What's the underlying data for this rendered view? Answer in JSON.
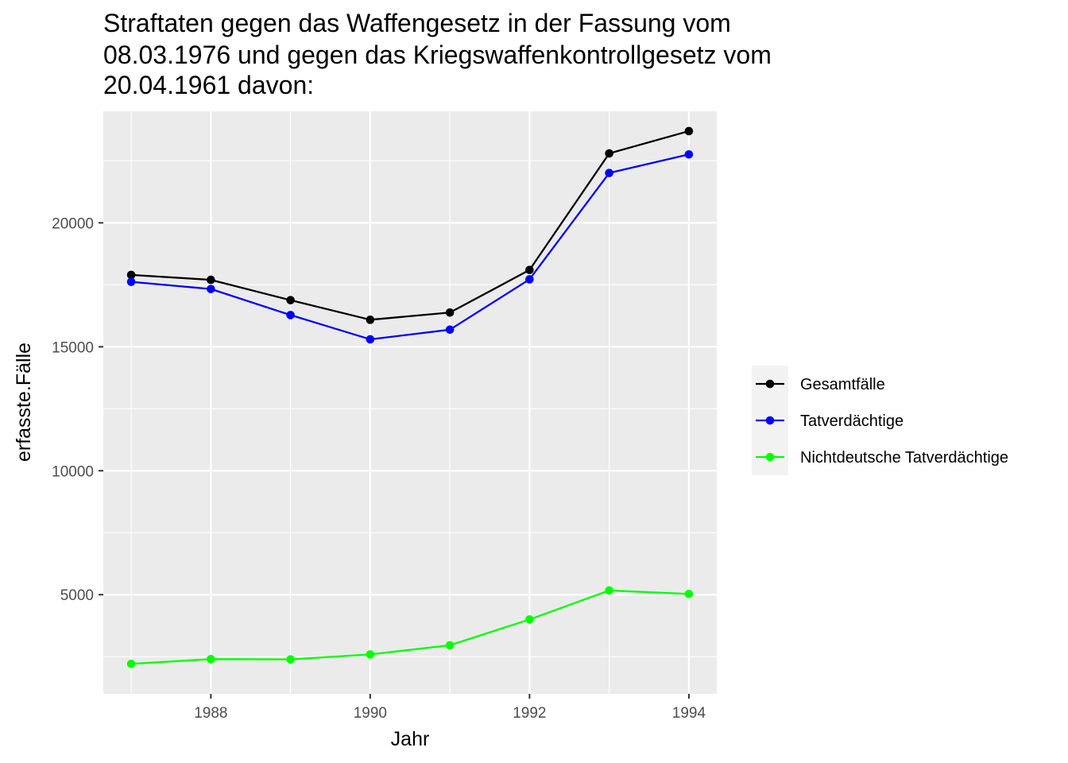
{
  "chart_data": {
    "type": "line",
    "title_lines": [
      "Straftaten gegen das Waffengesetz in der Fassung vom",
      "08.03.1976 und gegen das Kriegswaffenkontrollgesetz vom",
      "20.04.1961 davon:"
    ],
    "xlabel": "Jahr",
    "ylabel": "erfasste.Fälle",
    "x": [
      1987,
      1988,
      1989,
      1990,
      1991,
      1992,
      1993,
      1994
    ],
    "xlim": [
      1986.65,
      1994.35
    ],
    "ylim": [
      1000,
      24500
    ],
    "x_ticks": [
      1988,
      1990,
      1992,
      1994
    ],
    "x_tick_labels": [
      "1988",
      "1990",
      "1992",
      "1994"
    ],
    "y_ticks": [
      5000,
      10000,
      15000,
      20000
    ],
    "y_tick_labels": [
      "5000",
      "10000",
      "15000",
      "20000"
    ],
    "grid": true,
    "legend_position": "right",
    "panel_background": "#ebebeb",
    "series": [
      {
        "name": "Gesamtfälle",
        "color": "#000000",
        "values": [
          17900,
          17700,
          16880,
          16090,
          16380,
          18100,
          22800,
          23700
        ]
      },
      {
        "name": "Tatverdächtige",
        "color": "#0000ff",
        "values": [
          17620,
          17330,
          16280,
          15300,
          15690,
          17720,
          22010,
          22760
        ]
      },
      {
        "name": "Nichtdeutsche Tatverdächtige",
        "color": "#00ff00",
        "values": [
          2210,
          2400,
          2390,
          2590,
          2960,
          4000,
          5170,
          5030
        ]
      }
    ]
  }
}
